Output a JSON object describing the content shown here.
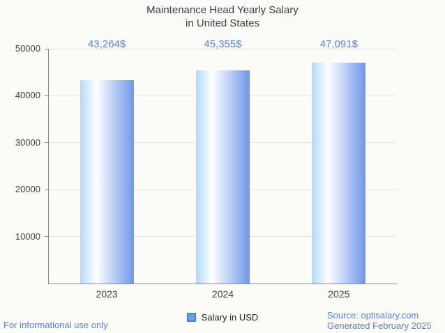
{
  "chart_data": {
    "type": "bar",
    "title_lines": [
      "Maintenance Head Yearly Salary",
      "in United States"
    ],
    "categories": [
      "2023",
      "2024",
      "2025"
    ],
    "series": [
      {
        "name": "Salary in USD",
        "values": [
          43264,
          45355,
          47091
        ]
      }
    ],
    "value_labels": [
      "43,264$",
      "45,355$",
      "47,091$"
    ],
    "xlabel": "",
    "ylabel": "",
    "ylim": [
      0,
      50000
    ],
    "yticks": [
      10000,
      20000,
      30000,
      40000,
      50000
    ],
    "ytick_labels": [
      "10000",
      "20000",
      "30000",
      "40000",
      "50000"
    ],
    "grid": true,
    "legend_position": "bottom"
  },
  "legend": {
    "label": "Salary in USD"
  },
  "footer": {
    "left_note": "For informational use only",
    "source": "Source: optisalary.com",
    "generated": "Generated February 2025"
  },
  "colors": {
    "background": "#fbfbf7",
    "title_text": "#3d3d3d",
    "value_label_text": "#5b84d6",
    "axis_line": "#8a8a8a",
    "gridline": "#e4e4e0",
    "axis_label_text": "#3f3f3f",
    "bar_gradient_left": "#b2d8fc",
    "bar_gradient_mid": "#ffffff",
    "bar_gradient_right": "#6f97e8",
    "legend_marker_fill": "#6d9ee9",
    "legend_marker_border": "#4e80c9",
    "footer_text": "#5b7ed8"
  }
}
